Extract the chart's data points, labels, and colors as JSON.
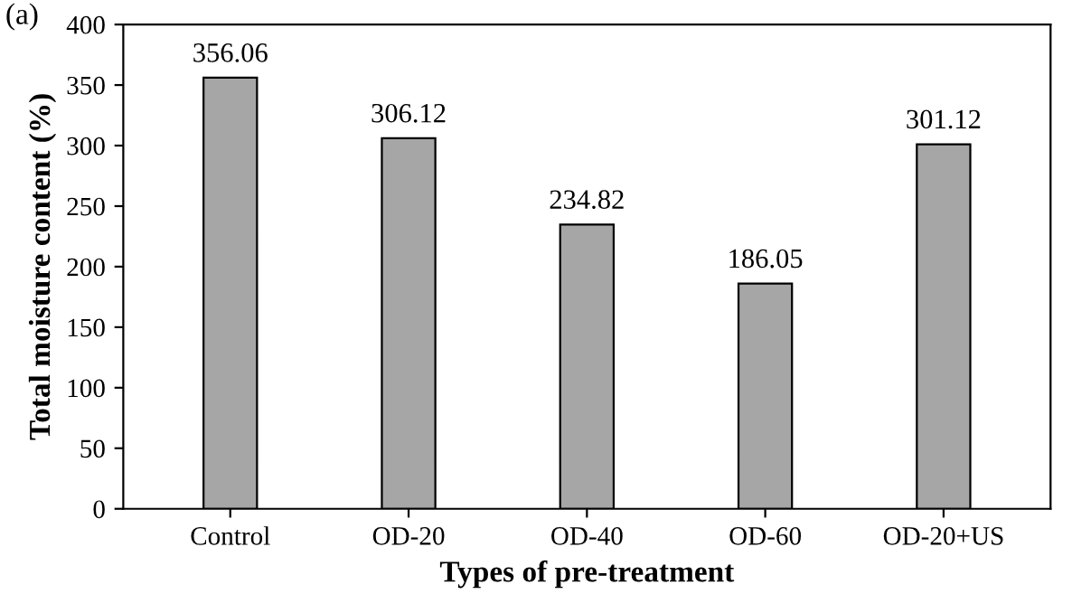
{
  "chart_data": {
    "type": "bar",
    "xlabel": "Types of pre-treatment",
    "ylabel": "Total moisture content (%)",
    "annotations": [
      "(a)"
    ],
    "categories": [
      "Control",
      "OD-20",
      "OD-40",
      "OD-60",
      "OD-20+US"
    ],
    "values": [
      356.06,
      306.12,
      234.82,
      186.05,
      301.12
    ],
    "color": "#a6a6a6",
    "data_labels": true,
    "ylim": [
      0,
      400
    ],
    "yticks": [
      0,
      50,
      100,
      150,
      200,
      250,
      300,
      350,
      400
    ],
    "grid": false
  }
}
